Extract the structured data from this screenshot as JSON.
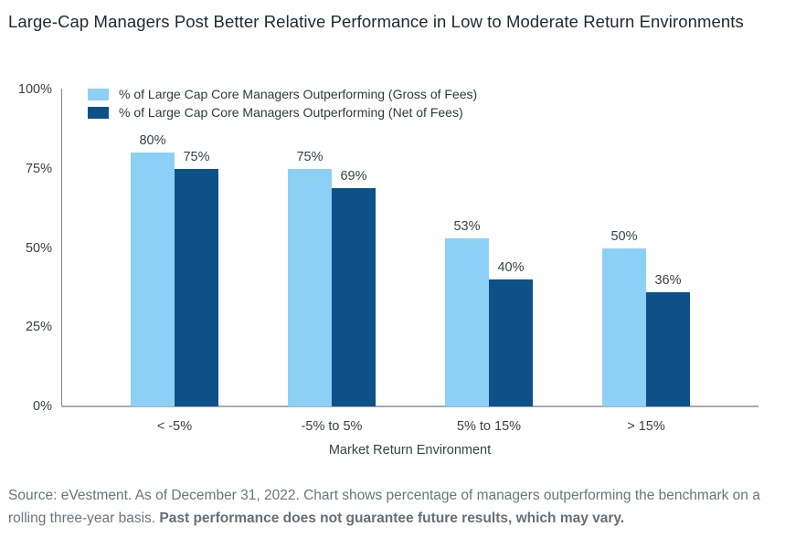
{
  "title": "Large-Cap Managers Post Better Relative Performance in Low to Moderate Return Environments",
  "chart_data": {
    "type": "bar",
    "categories": [
      "< -5%",
      "-5% to 5%",
      "5% to 15%",
      "> 15%"
    ],
    "series": [
      {
        "name": "% of Large Cap Core Managers Outperforming (Gross of Fees)",
        "color": "#8DD0F5",
        "values": [
          80,
          75,
          53,
          50
        ]
      },
      {
        "name": "% of Large Cap Core Managers Outperforming (Net of Fees)",
        "color": "#0E5188",
        "values": [
          75,
          69,
          40,
          36
        ]
      }
    ],
    "data_labels": [
      "80%",
      "75%",
      "75%",
      "69%",
      "53%",
      "40%",
      "50%",
      "36%"
    ],
    "title": "",
    "xlabel": "Market Return Environment",
    "ylabel": "",
    "ylim": [
      0,
      100
    ],
    "yticks": [
      0,
      25,
      50,
      75,
      100
    ],
    "ytick_labels": [
      "0%",
      "25%",
      "50%",
      "75%",
      "100%"
    ],
    "grid": false,
    "legend_position": "top-left"
  },
  "footer": {
    "regular": "Source: eVestment. As of December 31, 2022. Chart shows percentage of managers outperforming the benchmark on a rolling three-year basis. ",
    "bold": "Past performance does not guarantee future results, which may vary."
  },
  "colors": {
    "gross_bar": "#8DD0F5",
    "net_bar": "#0E5188",
    "title_text": "#232930",
    "label_text": "#3b4046",
    "footer_text": "#6e737a",
    "axis_line": "#85898d"
  }
}
